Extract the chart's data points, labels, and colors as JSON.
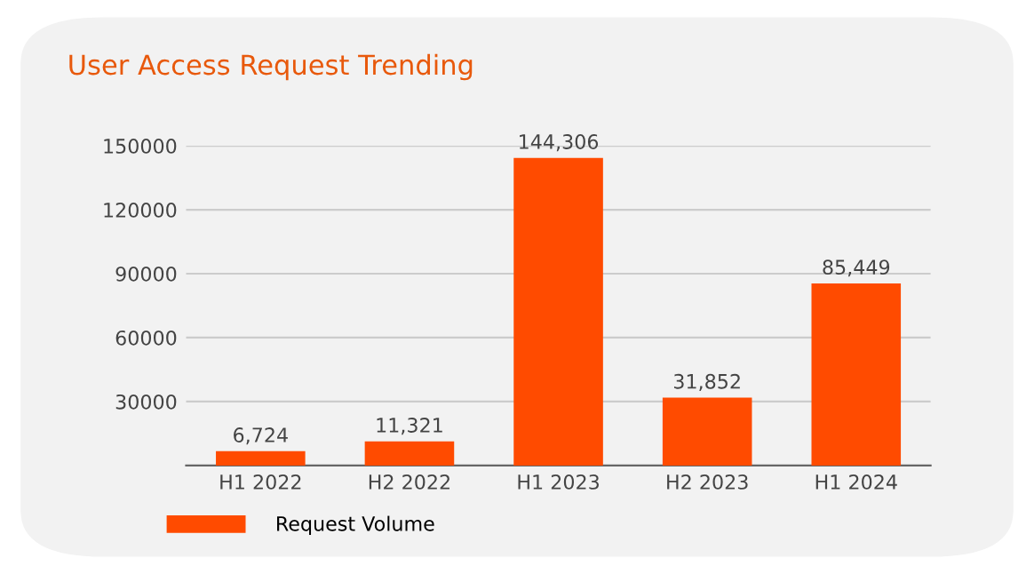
{
  "chart_data": {
    "type": "bar",
    "title": "User Access Request Trending",
    "categories": [
      "H1 2022",
      "H2 2022",
      "H1 2023",
      "H2 2023",
      "H1 2024"
    ],
    "series": [
      {
        "name": "Request Volume",
        "color": "#ff4b00",
        "values": [
          6724,
          11321,
          144306,
          31852,
          85449
        ]
      }
    ],
    "value_labels": [
      "6,724",
      "11,321",
      "144,306",
      "31,852",
      "85,449"
    ],
    "ylim": [
      0,
      150000
    ],
    "yticks": [
      30000,
      60000,
      90000,
      120000,
      150000
    ],
    "grid": "y",
    "legend": "bottom"
  }
}
